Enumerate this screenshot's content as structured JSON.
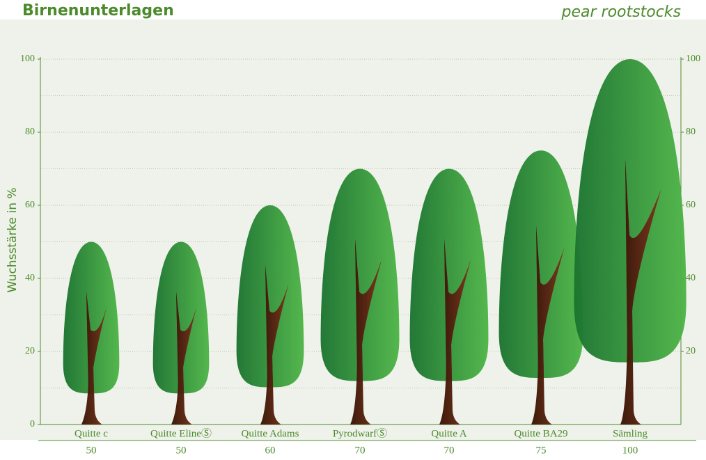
{
  "chart_data": {
    "type": "tree-pictograph",
    "title": "Birnenunterlagen",
    "subtitle": "pear rootstocks",
    "y_label": "Wuchsstärke in %",
    "categories": [
      "Quitte c",
      "Quitte ElineⓈ",
      "Quitte Adams",
      "PyrodwarfⓈ",
      "Quitte A",
      "Quitte BA29",
      "Sämling"
    ],
    "values": [
      50,
      50,
      60,
      70,
      70,
      75,
      100
    ],
    "ylim": [
      0,
      100
    ],
    "yticks": [
      0,
      20,
      40,
      60,
      80,
      100
    ],
    "y2lim": [
      0,
      100
    ],
    "y2ticks": [
      20,
      40,
      60,
      80,
      100
    ],
    "minor_yticks": [
      10,
      30,
      50,
      70,
      90
    ],
    "grid": true,
    "crown_colors": [
      "#1c7430",
      "#4fb548"
    ],
    "trunk_colors": [
      "#3f1a0c",
      "#7a3a1e"
    ]
  }
}
